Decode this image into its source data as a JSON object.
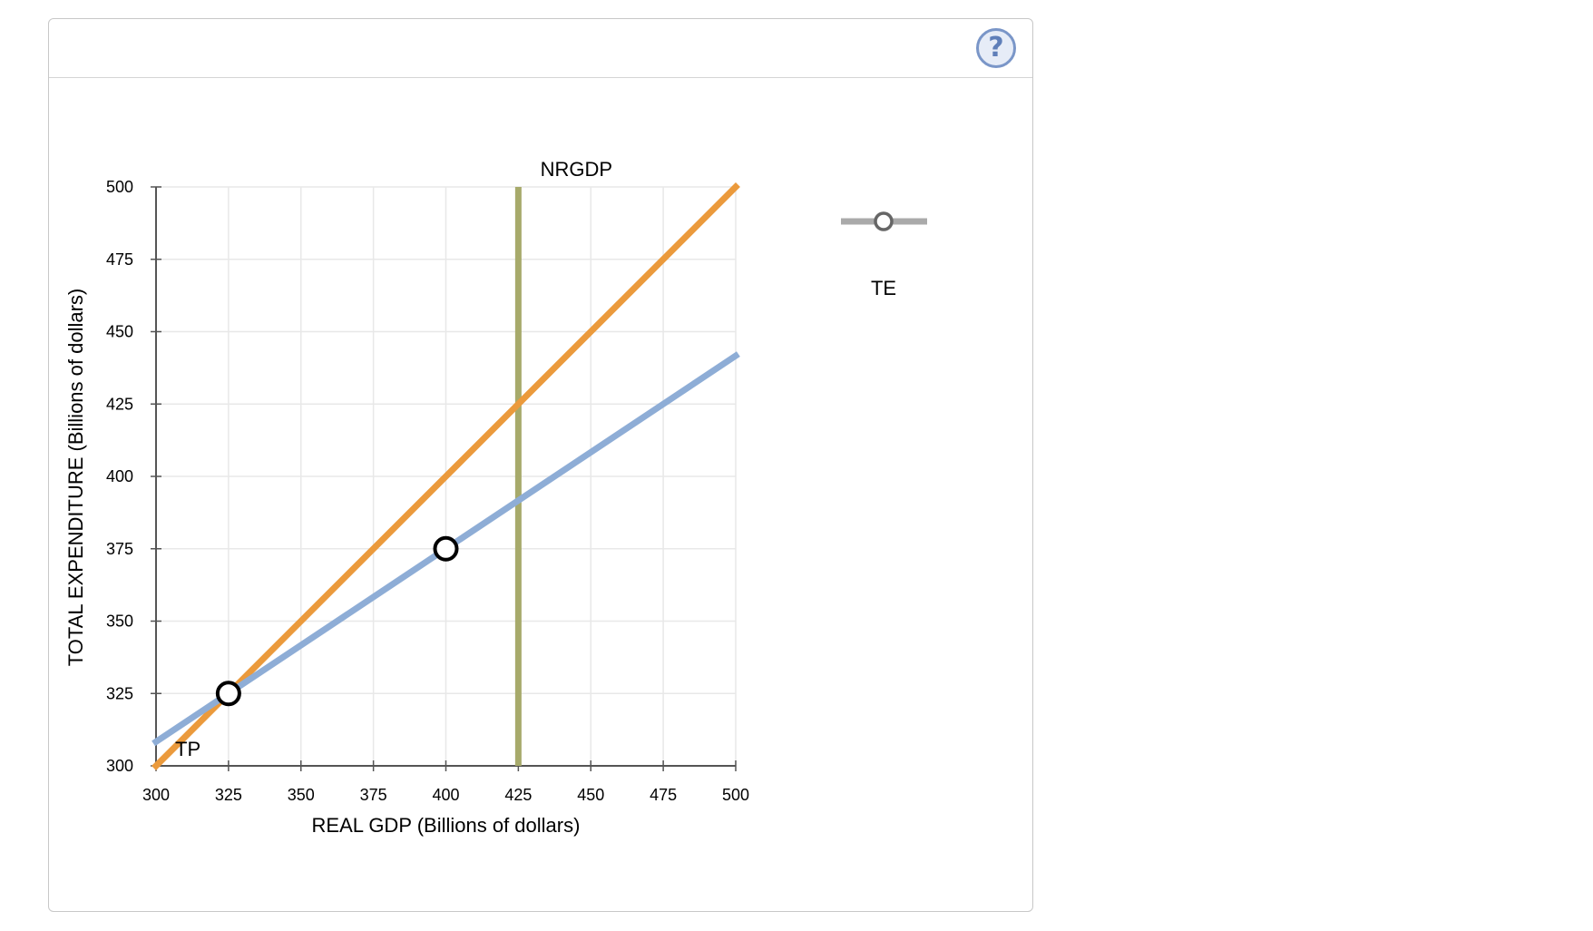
{
  "help": {
    "label": "?"
  },
  "legend_tool": {
    "label": "TE",
    "color": "#aaaaaa"
  },
  "chart_data": {
    "type": "line",
    "xlabel": "REAL GDP (Billions of dollars)",
    "ylabel": "TOTAL EXPENDITURE (Billions of dollars)",
    "xlim": [
      300,
      500
    ],
    "ylim": [
      300,
      500
    ],
    "x_ticks": [
      300,
      325,
      350,
      375,
      400,
      425,
      450,
      475,
      500
    ],
    "y_ticks": [
      300,
      325,
      350,
      375,
      400,
      425,
      450,
      475,
      500
    ],
    "grid": true,
    "series": [
      {
        "name": "TP",
        "color": "#eb9a3c",
        "points": [
          [
            300,
            300
          ],
          [
            500,
            500
          ]
        ]
      },
      {
        "name": "",
        "color": "#8eadd6",
        "points": [
          [
            300,
            308.33
          ],
          [
            500,
            441.67
          ]
        ]
      }
    ],
    "vertical_lines": [
      {
        "name": "NRGDP",
        "x": 425,
        "color": "#a7aa6b"
      }
    ],
    "markers": [
      {
        "x": 325,
        "y": 325
      },
      {
        "x": 400,
        "y": 375
      }
    ]
  }
}
